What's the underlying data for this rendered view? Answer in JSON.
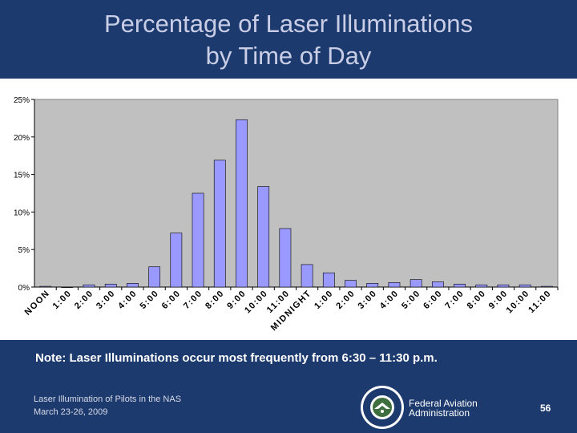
{
  "slide": {
    "title_line1": "Percentage of Laser Illuminations",
    "title_line2": "by Time of Day",
    "note": "Note: Laser Illuminations occur most frequently from 6:30 – 11:30 p.m.",
    "footer_line1": "Laser Illumination of Pilots in the NAS",
    "footer_line2": "March 23-26, 2009",
    "agency_line1": "Federal Aviation",
    "agency_line2": "Administration",
    "page_number": "56"
  },
  "colors": {
    "header": "#1c3a6e",
    "bar": "#9999ff",
    "plot_bg": "#c0c0c0"
  },
  "chart_data": {
    "type": "bar",
    "categories": [
      "NOON",
      "1:00",
      "2:00",
      "3:00",
      "4:00",
      "5:00",
      "6:00",
      "7:00",
      "8:00",
      "9:00",
      "10:00",
      "11:00",
      "MIDNIGHT",
      "1:00",
      "2:00",
      "3:00",
      "4:00",
      "5:00",
      "6:00",
      "7:00",
      "8:00",
      "9:00",
      "10:00",
      "11:00"
    ],
    "values": [
      0.1,
      0.0,
      0.3,
      0.4,
      0.5,
      2.7,
      7.2,
      12.5,
      16.9,
      22.3,
      13.4,
      7.8,
      3.0,
      1.9,
      0.9,
      0.5,
      0.6,
      1.0,
      0.7,
      0.4,
      0.3,
      0.3,
      0.3,
      0.1
    ],
    "yticks": [
      "0%",
      "5%",
      "10%",
      "15%",
      "20%",
      "25%"
    ],
    "ylim": [
      0,
      25
    ],
    "grid": false,
    "legend": "none"
  }
}
